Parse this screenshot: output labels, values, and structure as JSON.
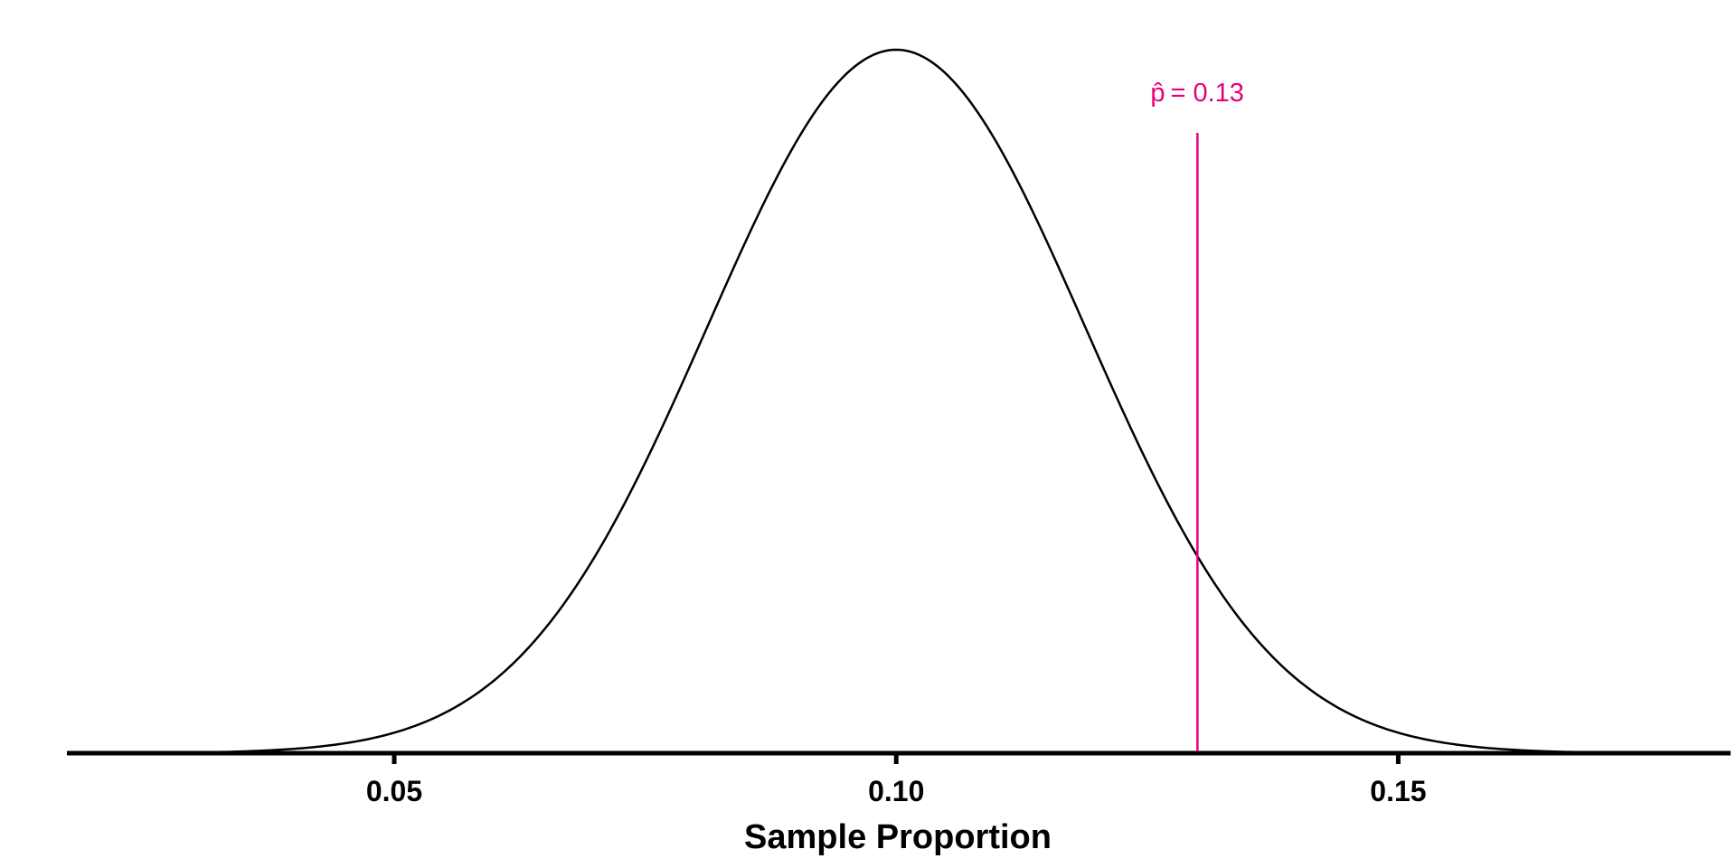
{
  "chart_data": {
    "type": "line",
    "title": "",
    "xlabel": "Sample Proportion",
    "ylabel": "",
    "xlim": [
      0.0174,
      0.1831
    ],
    "x_ticks": [
      0.05,
      0.1,
      0.15
    ],
    "x_tick_labels": [
      "0.05",
      "0.10",
      "0.15"
    ],
    "grid": false,
    "legend": "none",
    "series": [
      {
        "distribution": "normal",
        "mean": 0.1,
        "sd": 0.0188,
        "x_range": [
          0.025,
          0.175
        ],
        "color": "#000000"
      }
    ],
    "annotations": [
      {
        "type": "vertical-line",
        "x": 0.13,
        "symbol": "p̂",
        "label": "= 0.13",
        "color": "#E6007E"
      }
    ]
  }
}
